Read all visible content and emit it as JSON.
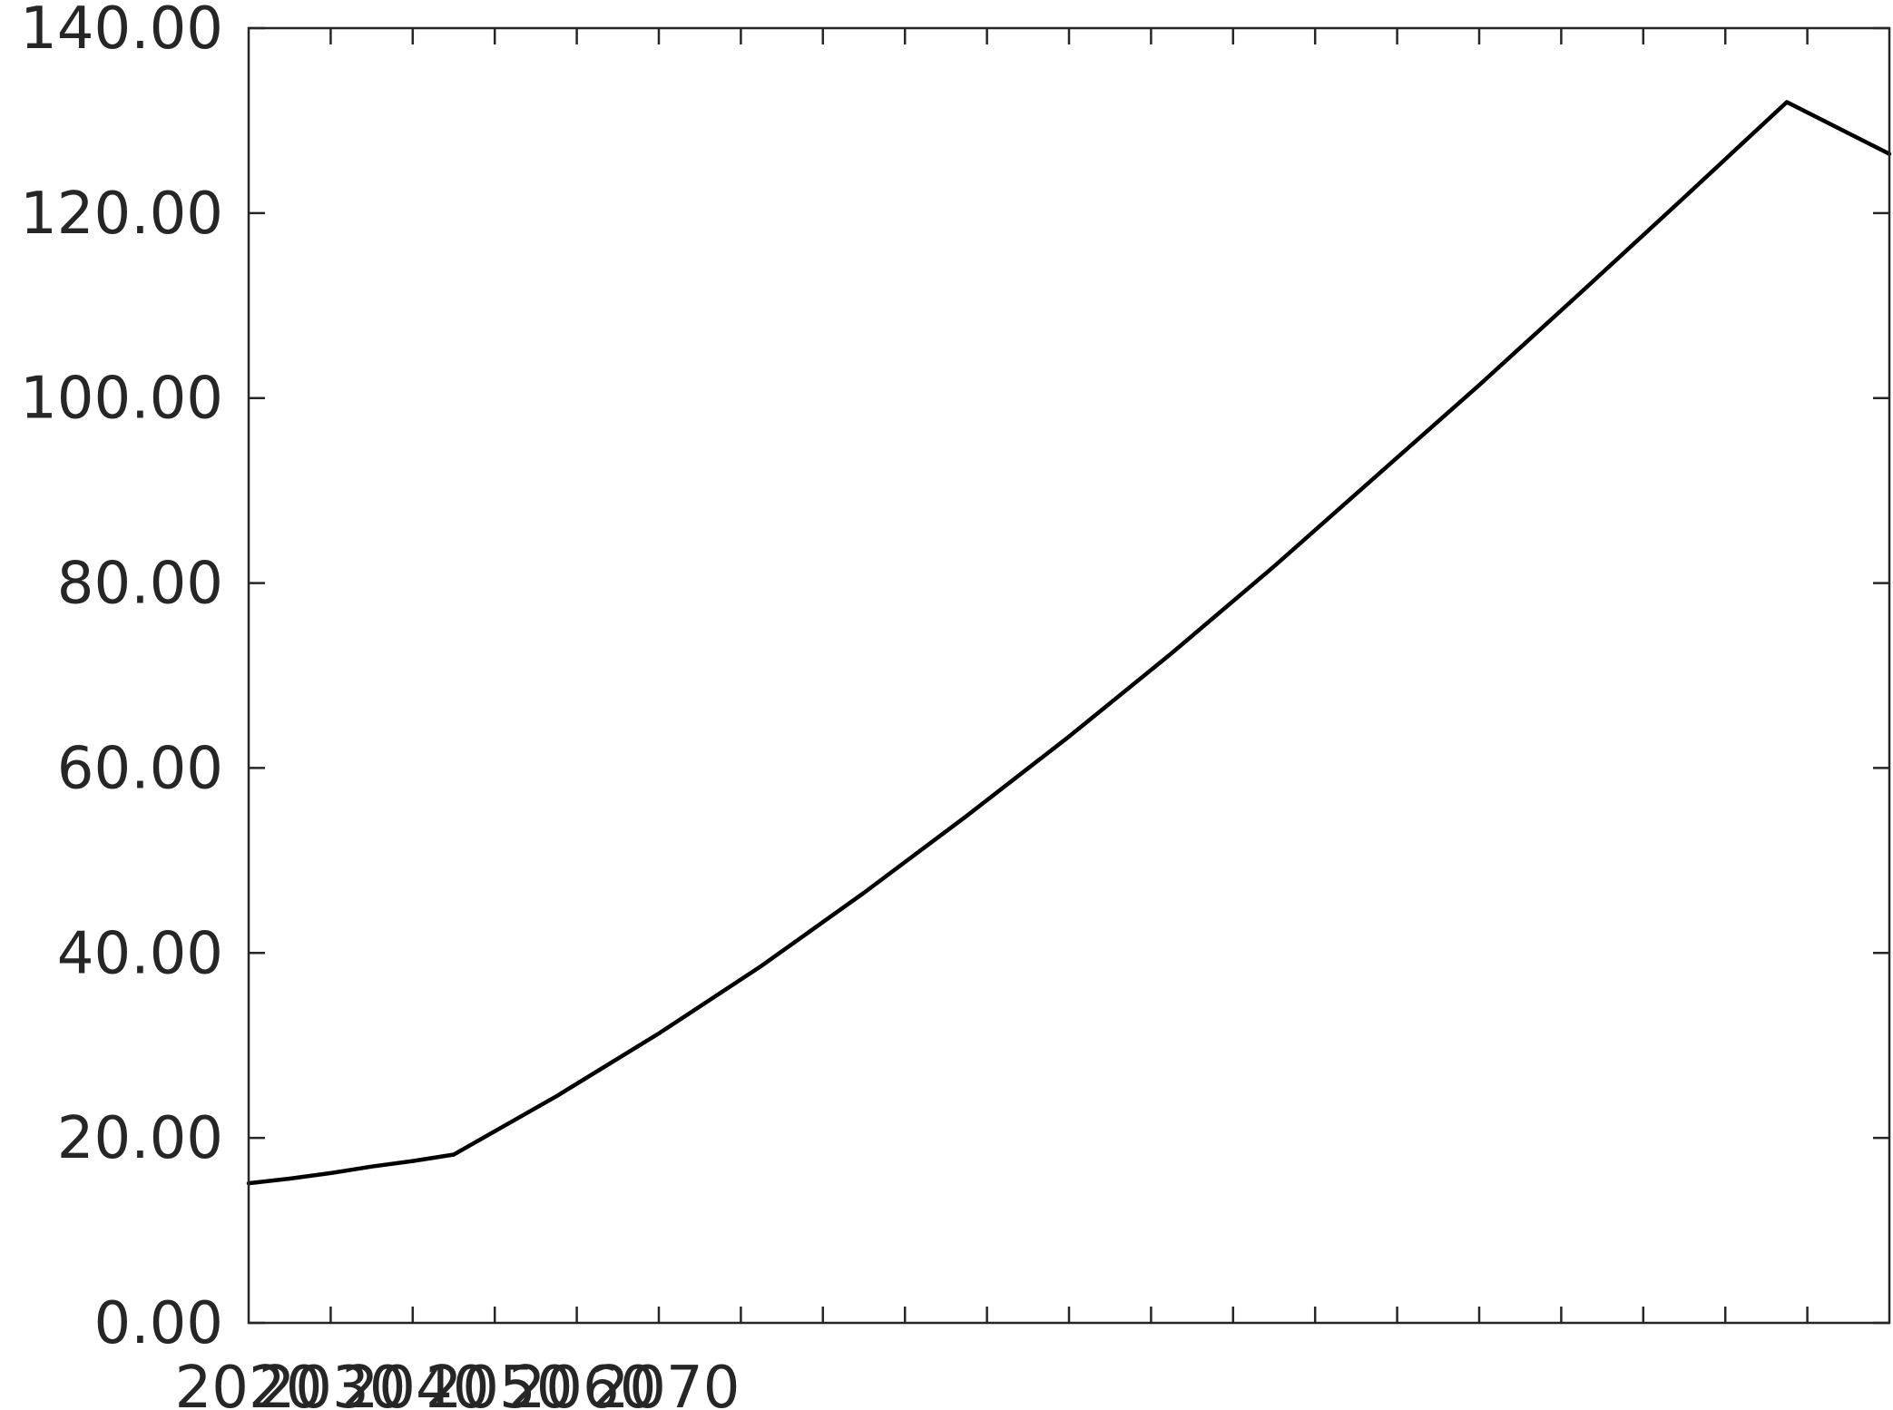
{
  "chart_data": {
    "type": "line",
    "title": "",
    "xlabel": "",
    "ylabel": "",
    "xlim": [
      2020,
      2100
    ],
    "ylim": [
      0,
      140
    ],
    "y_ticks": [
      0,
      20,
      40,
      60,
      80,
      100,
      120,
      140
    ],
    "y_tick_labels": [
      "0.00",
      "20.00",
      "40.00",
      "60.00",
      "80.00",
      "100.00",
      "120.00",
      "140.00"
    ],
    "x_ticks": [
      2020,
      2030,
      2040,
      2050,
      2060,
      2070
    ],
    "x_tick_labels": [
      "2020",
      "2030",
      "2040",
      "2050",
      "2060",
      "2070"
    ],
    "minor_x_ticks": [
      2024,
      2028,
      2032,
      2036,
      2040,
      2044,
      2048,
      2052,
      2056,
      2060,
      2064,
      2068,
      2072,
      2076,
      2080,
      2084,
      2088,
      2092,
      2096
    ],
    "grid": false,
    "legend": "none",
    "line_color": "#000000",
    "series": [
      {
        "x": [
          2020,
          2022,
          2024,
          2026,
          2028,
          2030,
          2035,
          2040,
          2045,
          2050,
          2055,
          2060,
          2065,
          2070,
          2075,
          2080,
          2085,
          2090,
          2095,
          2100
        ],
        "values": [
          15.1,
          15.6,
          16.2,
          16.9,
          17.5,
          18.2,
          24.5,
          31.3,
          38.6,
          46.5,
          54.8,
          63.4,
          72.4,
          81.8,
          91.6,
          101.4,
          111.5,
          121.7,
          132.0,
          126.4
        ]
      }
    ]
  }
}
